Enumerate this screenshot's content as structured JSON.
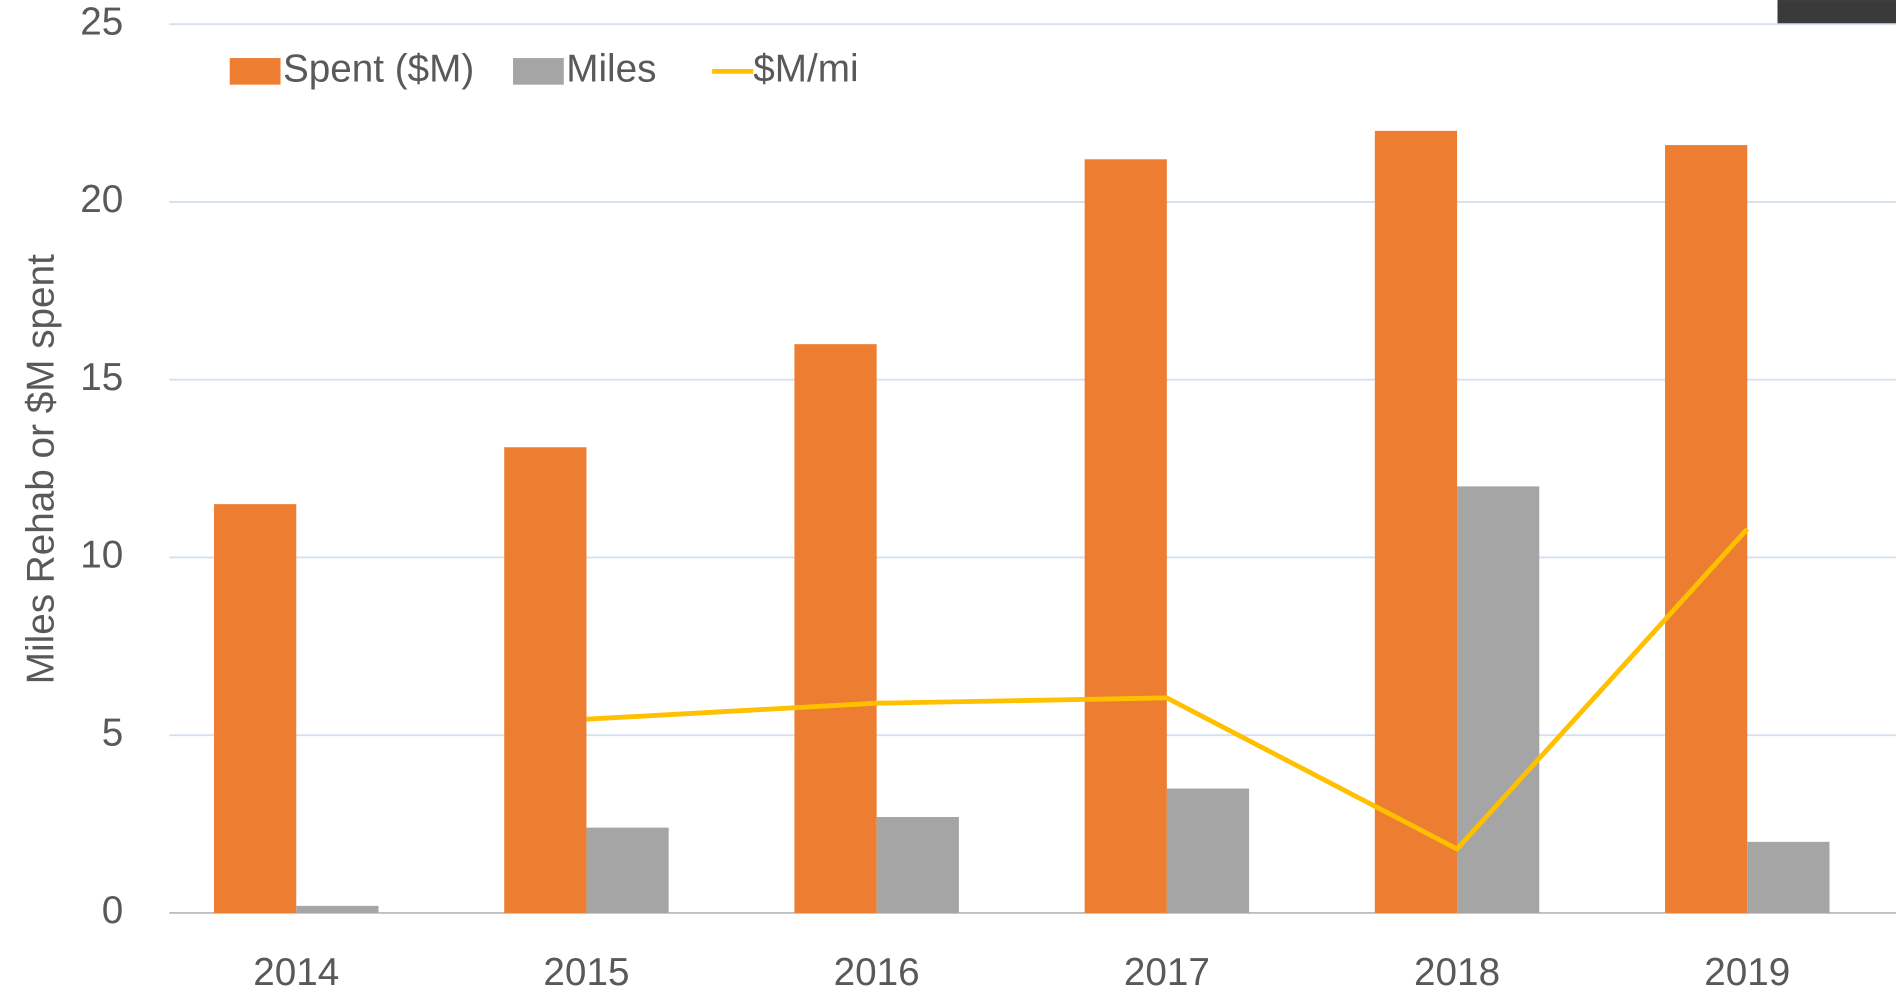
{
  "chart_data": {
    "type": "bar",
    "y_label": "Miles Rehab or $M spent",
    "categories": [
      "2014",
      "2015",
      "2016",
      "2017",
      "2018",
      "2019"
    ],
    "series": [
      {
        "name": "Spent ($M)",
        "type": "bar",
        "color": "#ed7d31",
        "values": [
          11.5,
          13.1,
          16.0,
          21.2,
          22.0,
          21.6
        ]
      },
      {
        "name": "Miles",
        "type": "bar",
        "color": "#a5a5a5",
        "values": [
          0.2,
          2.4,
          2.7,
          3.5,
          12.0,
          2.0
        ]
      },
      {
        "name": "$M/mi",
        "type": "line",
        "color": "#ffc000",
        "values": [
          null,
          5.45,
          5.9,
          6.05,
          1.8,
          10.8
        ]
      }
    ],
    "ylim": [
      0,
      25
    ],
    "yticks": [
      0,
      5,
      10,
      15,
      20,
      25
    ],
    "grid": true,
    "legend": "top-left"
  }
}
